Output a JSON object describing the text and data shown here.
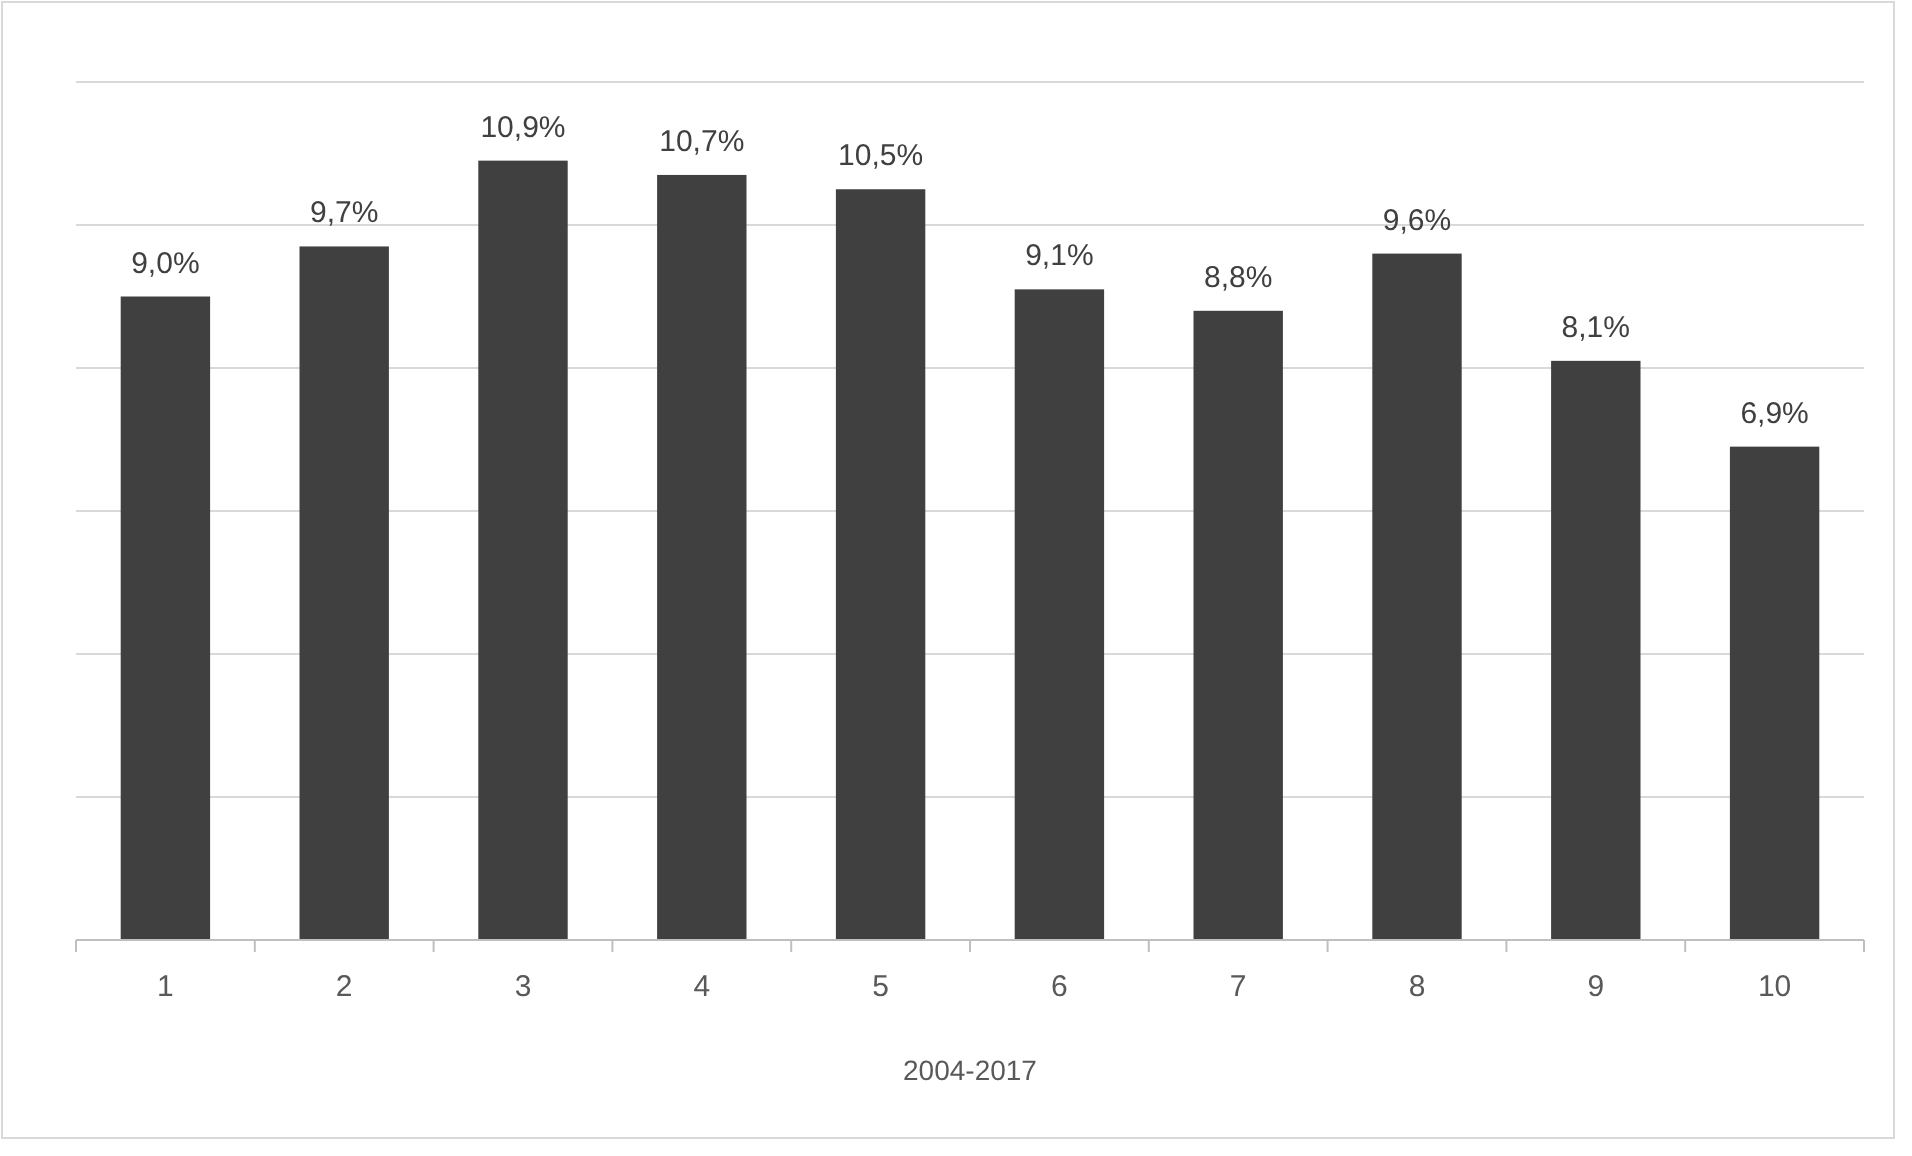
{
  "chart_data": {
    "type": "bar",
    "xlabel": "2004-2017",
    "categories": [
      "1",
      "2",
      "3",
      "4",
      "5",
      "6",
      "7",
      "8",
      "9",
      "10"
    ],
    "values": [
      9.0,
      9.7,
      10.9,
      10.7,
      10.5,
      9.1,
      8.8,
      9.6,
      8.1,
      6.9
    ],
    "value_labels": [
      "9,0%",
      "9,7%",
      "10,9%",
      "10,7%",
      "10,5%",
      "9,1%",
      "8,8%",
      "9,6%",
      "8,1%",
      "6,9%"
    ],
    "color": "#404040",
    "ylim": [
      0,
      12
    ],
    "yticks": [
      {
        "value": 0,
        "label": null
      },
      {
        "value": 2,
        "label": null
      },
      {
        "value": 4,
        "label": null
      },
      {
        "value": 6,
        "label": null
      },
      {
        "value": 8,
        "label": null
      },
      {
        "value": 10,
        "label": null
      },
      {
        "value": 12,
        "label": null
      }
    ],
    "grid": "y",
    "tick_labels": "x"
  }
}
